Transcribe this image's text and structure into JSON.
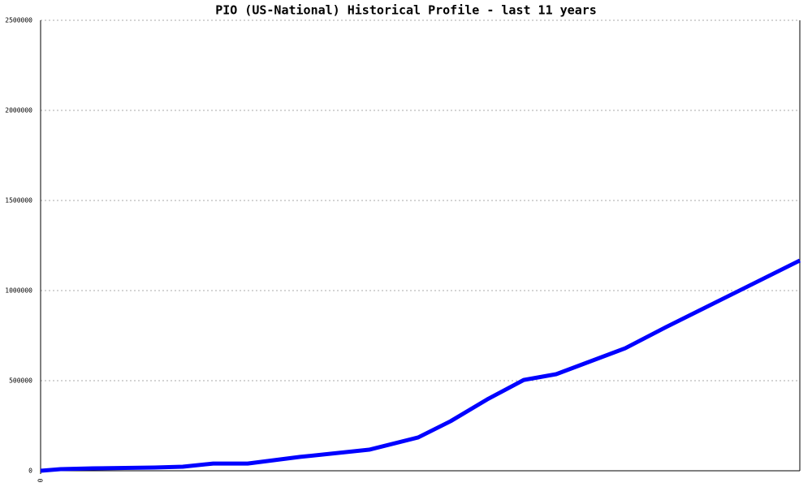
{
  "chart_data": {
    "type": "line",
    "title": "PIO (US-National) Historical Profile - last 11 years",
    "x": [
      0,
      0.29,
      0.76,
      1.65,
      2.06,
      2.5,
      3.0,
      3.76,
      4.76,
      5.47,
      5.94,
      6.47,
      7.0,
      7.47,
      8.47,
      9.06,
      11
    ],
    "series": [
      {
        "color": "#0000ff",
        "values": [
          0,
          9000,
          13500,
          18000,
          22500,
          40000,
          40000,
          77000,
          117000,
          185000,
          275000,
          396000,
          504000,
          536000,
          680000,
          797000,
          1167000
        ]
      }
    ],
    "xlim": [
      0,
      11
    ],
    "xticks": [
      0
    ],
    "ylim": [
      0,
      2500000
    ],
    "yticks": [
      0,
      500000,
      1000000,
      1500000,
      2000000,
      2500000
    ],
    "grid": true
  }
}
